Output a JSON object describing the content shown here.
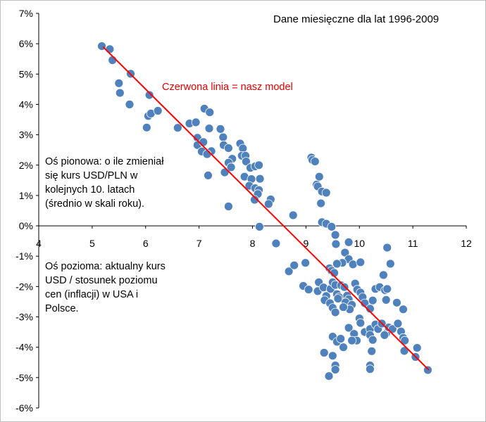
{
  "chart_data": {
    "type": "scatter",
    "title": "Dane miesięczne dla lat 1996-2009",
    "annotations": {
      "model_line": "Czerwona linia = nasz model",
      "y_axis_note": "Oś pionowa: o ile zmieniał\nsię kurs USD/PLN w\nkolejnych 10. latach\n(średnio w skali roku).",
      "x_axis_note": "Oś pozioma: aktualny kurs\nUSD / stosunek poziomu\ncen (inflacji) w USA i\nPolsce."
    },
    "xlim": [
      4,
      12
    ],
    "ylim": [
      -6,
      7
    ],
    "x_ticks": [
      "4",
      "5",
      "6",
      "7",
      "8",
      "9",
      "10",
      "11",
      "12"
    ],
    "y_ticks": [
      "-6%",
      "-5%",
      "-4%",
      "-3%",
      "-2%",
      "-1%",
      "0%",
      "1%",
      "2%",
      "3%",
      "4%",
      "5%",
      "6%",
      "7%"
    ],
    "grid": false,
    "colors": {
      "points": "#4f81bd",
      "model_line": "#ff0000",
      "axis": "#000000"
    },
    "model_line": {
      "x": [
        5.2,
        11.3
      ],
      "y": [
        5.9,
        -4.75
      ]
    },
    "points": [
      [
        5.18,
        5.92
      ],
      [
        5.33,
        5.82
      ],
      [
        5.38,
        5.46
      ],
      [
        5.5,
        4.7
      ],
      [
        5.52,
        4.38
      ],
      [
        5.72,
        5.01
      ],
      [
        5.7,
        4.0
      ],
      [
        6.07,
        4.31
      ],
      [
        6.05,
        3.62
      ],
      [
        6.1,
        3.7
      ],
      [
        6.23,
        3.79
      ],
      [
        6.02,
        3.24
      ],
      [
        6.6,
        3.23
      ],
      [
        6.82,
        3.37
      ],
      [
        6.94,
        3.41
      ],
      [
        6.97,
        2.9
      ],
      [
        6.97,
        2.66
      ],
      [
        7.05,
        2.45
      ],
      [
        7.08,
        2.76
      ],
      [
        7.1,
        3.86
      ],
      [
        7.2,
        3.74
      ],
      [
        7.19,
        3.21
      ],
      [
        7.23,
        2.46
      ],
      [
        7.15,
        2.36
      ],
      [
        7.17,
        1.66
      ],
      [
        7.4,
        3.19
      ],
      [
        7.45,
        2.92
      ],
      [
        7.46,
        2.66
      ],
      [
        7.55,
        2.56
      ],
      [
        7.62,
        2.21
      ],
      [
        7.55,
        2.08
      ],
      [
        7.6,
        1.93
      ],
      [
        7.48,
        1.76
      ],
      [
        7.77,
        2.71
      ],
      [
        7.82,
        2.55
      ],
      [
        7.8,
        2.31
      ],
      [
        7.87,
        2.31
      ],
      [
        7.88,
        2.12
      ],
      [
        7.96,
        1.91
      ],
      [
        7.85,
        1.62
      ],
      [
        8.05,
        1.96
      ],
      [
        8.12,
        2.0
      ],
      [
        8.14,
        1.55
      ],
      [
        7.98,
        1.54
      ],
      [
        7.94,
        1.32
      ],
      [
        8.05,
        1.24
      ],
      [
        8.12,
        1.18
      ],
      [
        8.1,
        1.05
      ],
      [
        8.04,
        0.86
      ],
      [
        8.34,
        0.87
      ],
      [
        8.3,
        0.72
      ],
      [
        7.55,
        0.64
      ],
      [
        8.13,
        -0.03
      ],
      [
        8.44,
        -0.58
      ],
      [
        8.76,
        0.35
      ],
      [
        9.1,
        2.25
      ],
      [
        9.12,
        2.17
      ],
      [
        9.17,
        2.12
      ],
      [
        9.2,
        1.36
      ],
      [
        9.22,
        1.3
      ],
      [
        9.25,
        1.62
      ],
      [
        9.3,
        1.13
      ],
      [
        9.38,
        1.09
      ],
      [
        9.28,
        0.74
      ],
      [
        9.3,
        0.12
      ],
      [
        9.38,
        0.07
      ],
      [
        9.48,
        -0.03
      ],
      [
        9.55,
        -0.3
      ],
      [
        9.56,
        -0.6
      ],
      [
        9.8,
        -0.54
      ],
      [
        9.73,
        -0.88
      ],
      [
        9.8,
        -1.1
      ],
      [
        9.68,
        -1.22
      ],
      [
        9.88,
        -1.27
      ],
      [
        9.44,
        -1.4
      ],
      [
        9.48,
        -1.48
      ],
      [
        9.53,
        -1.55
      ],
      [
        9.58,
        -1.25
      ],
      [
        10.02,
        -1.2
      ],
      [
        8.68,
        -1.5
      ],
      [
        8.78,
        -1.3
      ],
      [
        8.99,
        -1.22
      ],
      [
        8.95,
        -1.98
      ],
      [
        9.05,
        -2.1
      ],
      [
        9.22,
        -2.15
      ],
      [
        9.24,
        -1.86
      ],
      [
        9.33,
        -2.03
      ],
      [
        9.38,
        -2.31
      ],
      [
        9.46,
        -2.08
      ],
      [
        9.5,
        -1.86
      ],
      [
        9.55,
        -1.95
      ],
      [
        9.58,
        -2.25
      ],
      [
        9.62,
        -2.35
      ],
      [
        9.66,
        -1.96
      ],
      [
        9.72,
        -2.02
      ],
      [
        9.77,
        -2.3
      ],
      [
        9.8,
        -2.42
      ],
      [
        9.74,
        -2.52
      ],
      [
        9.86,
        -2.6
      ],
      [
        9.82,
        -2.75
      ],
      [
        9.92,
        -1.9
      ],
      [
        9.96,
        -2.1
      ],
      [
        10.02,
        -2.2
      ],
      [
        10.06,
        -2.35
      ],
      [
        10.1,
        -2.55
      ],
      [
        10.2,
        -2.73
      ],
      [
        10.25,
        -2.46
      ],
      [
        10.3,
        -2.08
      ],
      [
        10.38,
        -2.02
      ],
      [
        10.45,
        -1.62
      ],
      [
        10.48,
        -2.12
      ],
      [
        10.52,
        -2.08
      ],
      [
        10.5,
        -2.44
      ],
      [
        10.52,
        -0.72
      ],
      [
        10.58,
        -1.25
      ],
      [
        10.7,
        -2.53
      ],
      [
        10.82,
        -2.75
      ],
      [
        9.35,
        -2.45
      ],
      [
        9.45,
        -2.55
      ],
      [
        9.5,
        -2.7
      ],
      [
        9.55,
        -2.85
      ],
      [
        9.6,
        -2.4
      ],
      [
        9.7,
        -2.68
      ],
      [
        10.0,
        -3.05
      ],
      [
        10.02,
        -3.2
      ],
      [
        10.1,
        -3.5
      ],
      [
        10.2,
        -3.4
      ],
      [
        10.3,
        -3.25
      ],
      [
        10.35,
        -3.4
      ],
      [
        10.42,
        -3.22
      ],
      [
        10.5,
        -3.55
      ],
      [
        10.55,
        -3.35
      ],
      [
        10.62,
        -3.4
      ],
      [
        10.72,
        -3.22
      ],
      [
        10.78,
        -3.48
      ],
      [
        10.82,
        -3.69
      ],
      [
        10.85,
        -3.78
      ],
      [
        9.8,
        -3.36
      ],
      [
        9.9,
        -3.56
      ],
      [
        9.95,
        -3.78
      ],
      [
        10.2,
        -3.6
      ],
      [
        10.25,
        -3.76
      ],
      [
        9.5,
        -3.65
      ],
      [
        9.58,
        -3.82
      ],
      [
        9.65,
        -3.72
      ],
      [
        9.7,
        -4.0
      ],
      [
        9.86,
        -3.78
      ],
      [
        9.34,
        -4.18
      ],
      [
        9.5,
        -4.28
      ],
      [
        9.55,
        -4.6
      ],
      [
        9.55,
        -4.74
      ],
      [
        9.43,
        -4.95
      ],
      [
        10.23,
        -4.13
      ],
      [
        10.2,
        -4.6
      ],
      [
        10.2,
        -4.72
      ],
      [
        10.47,
        -3.6
      ],
      [
        10.84,
        -4.12
      ],
      [
        11.08,
        -4.02
      ],
      [
        11.05,
        -4.32
      ],
      [
        11.28,
        -4.75
      ]
    ]
  }
}
